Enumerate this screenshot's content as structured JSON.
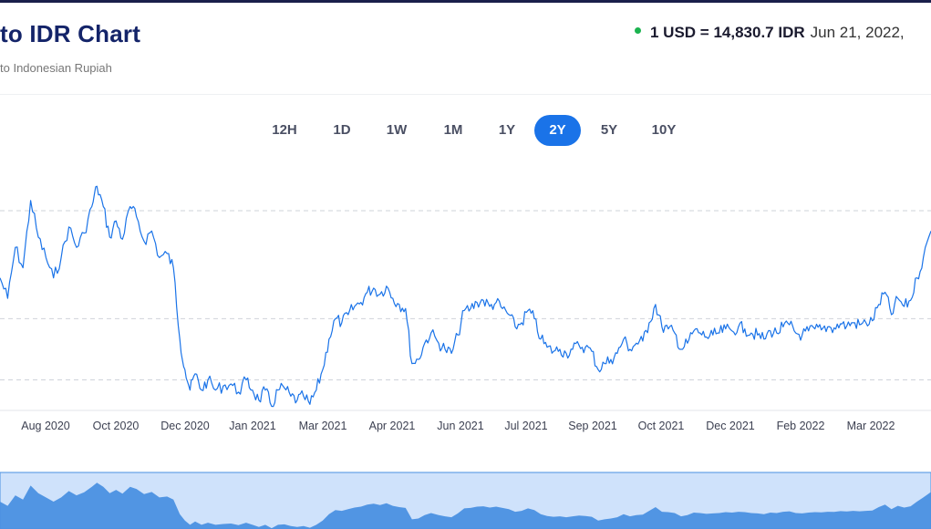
{
  "header": {
    "title": "to IDR Chart",
    "subtitle": "to Indonesian Rupiah",
    "rate_text": "1 USD = 14,830.7 IDR",
    "rate_date": "Jun 21, 2022,",
    "status_color": "#1bb34f"
  },
  "tabs": [
    {
      "label": "12H",
      "active": false
    },
    {
      "label": "1D",
      "active": false
    },
    {
      "label": "1W",
      "active": false
    },
    {
      "label": "1M",
      "active": false
    },
    {
      "label": "1Y",
      "active": false
    },
    {
      "label": "2Y",
      "active": true
    },
    {
      "label": "5Y",
      "active": false
    },
    {
      "label": "10Y",
      "active": false
    }
  ],
  "chart_data": {
    "type": "line",
    "title": "",
    "xlabel": "",
    "ylabel": "",
    "grid": true,
    "line_color": "#1a73e8",
    "x_ticks": [
      "Aug 2020",
      "Oct 2020",
      "Dec 2020",
      "Jan 2021",
      "Mar 2021",
      "Apr 2021",
      "Jun 2021",
      "Jul 2021",
      "Sep 2021",
      "Oct 2021",
      "Dec 2021",
      "Feb 2022",
      "Mar 2022"
    ],
    "x_range": [
      "2020-06-21",
      "2022-06-21"
    ],
    "ylim": [
      13950,
      15100
    ],
    "gridlines": [
      14100,
      14400,
      14930
    ],
    "series": [
      {
        "name": "",
        "points": [
          [
            "2020-06-21",
            14600
          ],
          [
            "2020-06-27",
            14500
          ],
          [
            "2020-07-03",
            14750
          ],
          [
            "2020-07-09",
            14650
          ],
          [
            "2020-07-15",
            14980
          ],
          [
            "2020-07-21",
            14800
          ],
          [
            "2020-07-27",
            14700
          ],
          [
            "2020-08-02",
            14600
          ],
          [
            "2020-08-08",
            14700
          ],
          [
            "2020-08-14",
            14850
          ],
          [
            "2020-08-20",
            14750
          ],
          [
            "2020-08-26",
            14820
          ],
          [
            "2020-09-01",
            14950
          ],
          [
            "2020-09-05",
            15050
          ],
          [
            "2020-09-10",
            14950
          ],
          [
            "2020-09-15",
            14800
          ],
          [
            "2020-09-20",
            14880
          ],
          [
            "2020-09-25",
            14790
          ],
          [
            "2020-10-01",
            14950
          ],
          [
            "2020-10-06",
            14900
          ],
          [
            "2020-10-12",
            14780
          ],
          [
            "2020-10-18",
            14830
          ],
          [
            "2020-10-24",
            14700
          ],
          [
            "2020-10-30",
            14720
          ],
          [
            "2020-11-04",
            14650
          ],
          [
            "2020-11-09",
            14300
          ],
          [
            "2020-11-13",
            14150
          ],
          [
            "2020-11-17",
            14050
          ],
          [
            "2020-11-21",
            14130
          ],
          [
            "2020-11-26",
            14050
          ],
          [
            "2020-12-01",
            14100
          ],
          [
            "2020-12-07",
            14050
          ],
          [
            "2020-12-13",
            14070
          ],
          [
            "2020-12-19",
            14080
          ],
          [
            "2020-12-25",
            14040
          ],
          [
            "2020-12-31",
            14100
          ],
          [
            "2021-01-05",
            14050
          ],
          [
            "2021-01-10",
            14000
          ],
          [
            "2021-01-15",
            14050
          ],
          [
            "2021-01-20",
            13970
          ],
          [
            "2021-01-25",
            14050
          ],
          [
            "2021-01-30",
            14060
          ],
          [
            "2021-02-04",
            14020
          ],
          [
            "2021-02-09",
            14000
          ],
          [
            "2021-02-14",
            14020
          ],
          [
            "2021-02-19",
            13980
          ],
          [
            "2021-02-24",
            14050
          ],
          [
            "2021-03-01",
            14150
          ],
          [
            "2021-03-06",
            14300
          ],
          [
            "2021-03-11",
            14400
          ],
          [
            "2021-03-16",
            14380
          ],
          [
            "2021-03-21",
            14420
          ],
          [
            "2021-03-26",
            14460
          ],
          [
            "2021-03-31",
            14480
          ],
          [
            "2021-04-05",
            14530
          ],
          [
            "2021-04-10",
            14550
          ],
          [
            "2021-04-15",
            14520
          ],
          [
            "2021-04-20",
            14560
          ],
          [
            "2021-04-25",
            14500
          ],
          [
            "2021-04-30",
            14470
          ],
          [
            "2021-05-05",
            14450
          ],
          [
            "2021-05-10",
            14180
          ],
          [
            "2021-05-15",
            14200
          ],
          [
            "2021-05-20",
            14280
          ],
          [
            "2021-05-25",
            14330
          ],
          [
            "2021-05-31",
            14280
          ],
          [
            "2021-06-05",
            14250
          ],
          [
            "2021-06-10",
            14230
          ],
          [
            "2021-06-15",
            14320
          ],
          [
            "2021-06-20",
            14440
          ],
          [
            "2021-06-25",
            14450
          ],
          [
            "2021-06-30",
            14480
          ],
          [
            "2021-07-05",
            14490
          ],
          [
            "2021-07-10",
            14460
          ],
          [
            "2021-07-15",
            14480
          ],
          [
            "2021-07-20",
            14450
          ],
          [
            "2021-07-25",
            14420
          ],
          [
            "2021-07-30",
            14360
          ],
          [
            "2021-08-04",
            14380
          ],
          [
            "2021-08-09",
            14440
          ],
          [
            "2021-08-14",
            14400
          ],
          [
            "2021-08-19",
            14300
          ],
          [
            "2021-08-24",
            14260
          ],
          [
            "2021-08-29",
            14240
          ],
          [
            "2021-09-03",
            14250
          ],
          [
            "2021-09-08",
            14230
          ],
          [
            "2021-09-13",
            14250
          ],
          [
            "2021-09-18",
            14270
          ],
          [
            "2021-09-23",
            14260
          ],
          [
            "2021-09-28",
            14240
          ],
          [
            "2021-10-03",
            14150
          ],
          [
            "2021-10-08",
            14180
          ],
          [
            "2021-10-13",
            14200
          ],
          [
            "2021-10-18",
            14230
          ],
          [
            "2021-10-23",
            14300
          ],
          [
            "2021-10-28",
            14250
          ],
          [
            "2021-11-02",
            14280
          ],
          [
            "2021-11-07",
            14290
          ],
          [
            "2021-11-12",
            14380
          ],
          [
            "2021-11-17",
            14470
          ],
          [
            "2021-11-22",
            14360
          ],
          [
            "2021-11-27",
            14350
          ],
          [
            "2021-12-02",
            14330
          ],
          [
            "2021-12-07",
            14250
          ],
          [
            "2021-12-12",
            14280
          ],
          [
            "2021-12-17",
            14340
          ],
          [
            "2021-12-22",
            14330
          ],
          [
            "2021-12-27",
            14310
          ],
          [
            "2022-01-01",
            14320
          ],
          [
            "2022-01-06",
            14330
          ],
          [
            "2022-01-11",
            14350
          ],
          [
            "2022-01-16",
            14340
          ],
          [
            "2022-01-21",
            14360
          ],
          [
            "2022-01-26",
            14350
          ],
          [
            "2022-01-31",
            14330
          ],
          [
            "2022-02-05",
            14320
          ],
          [
            "2022-02-10",
            14300
          ],
          [
            "2022-02-15",
            14340
          ],
          [
            "2022-02-20",
            14330
          ],
          [
            "2022-02-25",
            14360
          ],
          [
            "2022-03-02",
            14370
          ],
          [
            "2022-03-07",
            14330
          ],
          [
            "2022-03-12",
            14320
          ],
          [
            "2022-03-17",
            14340
          ],
          [
            "2022-03-22",
            14350
          ],
          [
            "2022-03-27",
            14345
          ],
          [
            "2022-04-01",
            14360
          ],
          [
            "2022-04-06",
            14355
          ],
          [
            "2022-04-11",
            14375
          ],
          [
            "2022-04-16",
            14365
          ],
          [
            "2022-04-21",
            14380
          ],
          [
            "2022-04-26",
            14370
          ],
          [
            "2022-05-01",
            14380
          ],
          [
            "2022-05-06",
            14390
          ],
          [
            "2022-05-11",
            14470
          ],
          [
            "2022-05-16",
            14530
          ],
          [
            "2022-05-21",
            14420
          ],
          [
            "2022-05-26",
            14500
          ],
          [
            "2022-05-31",
            14460
          ],
          [
            "2022-06-05",
            14490
          ],
          [
            "2022-06-10",
            14600
          ],
          [
            "2022-06-15",
            14700
          ],
          [
            "2022-06-21",
            14830
          ]
        ]
      }
    ]
  }
}
